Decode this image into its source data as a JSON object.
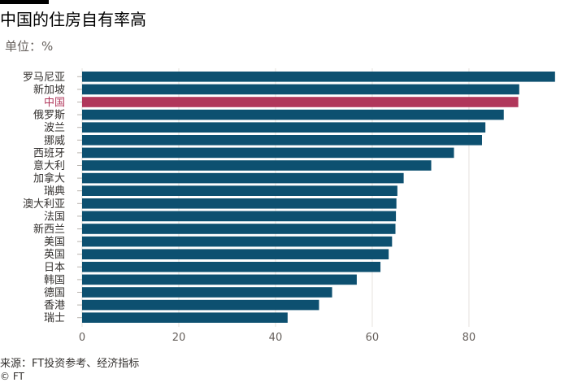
{
  "header": {
    "title": "中国的住房自有率高",
    "subtitle": "单位：%"
  },
  "chart_data": {
    "type": "bar",
    "orientation": "horizontal",
    "categories": [
      "罗马尼亚",
      "新加坡",
      "中国",
      "俄罗斯",
      "波兰",
      "挪威",
      "西班牙",
      "意大利",
      "加拿大",
      "瑞典",
      "澳大利亚",
      "法国",
      "新西兰",
      "美国",
      "英国",
      "日本",
      "韩国",
      "德国",
      "香港",
      "瑞士"
    ],
    "values": [
      97.8,
      90.4,
      90.2,
      87.2,
      83.4,
      82.7,
      76.9,
      72.2,
      66.5,
      65.2,
      65.0,
      64.9,
      64.8,
      64.1,
      63.4,
      61.7,
      56.8,
      51.7,
      49.0,
      42.5
    ],
    "highlight": "中国",
    "xlim": [
      0,
      98
    ],
    "xticks": [
      "0",
      "20",
      "40",
      "60",
      "80"
    ],
    "xtick_values": [
      0,
      20,
      40,
      60,
      80
    ],
    "grid": "vertical",
    "colors": {
      "bar": "#0d5070",
      "highlight": "#b0375b",
      "grid": "#e6e2dd"
    }
  },
  "footer": {
    "source": "来源：FT投资参考、经济指标",
    "copyright": "© FT"
  }
}
